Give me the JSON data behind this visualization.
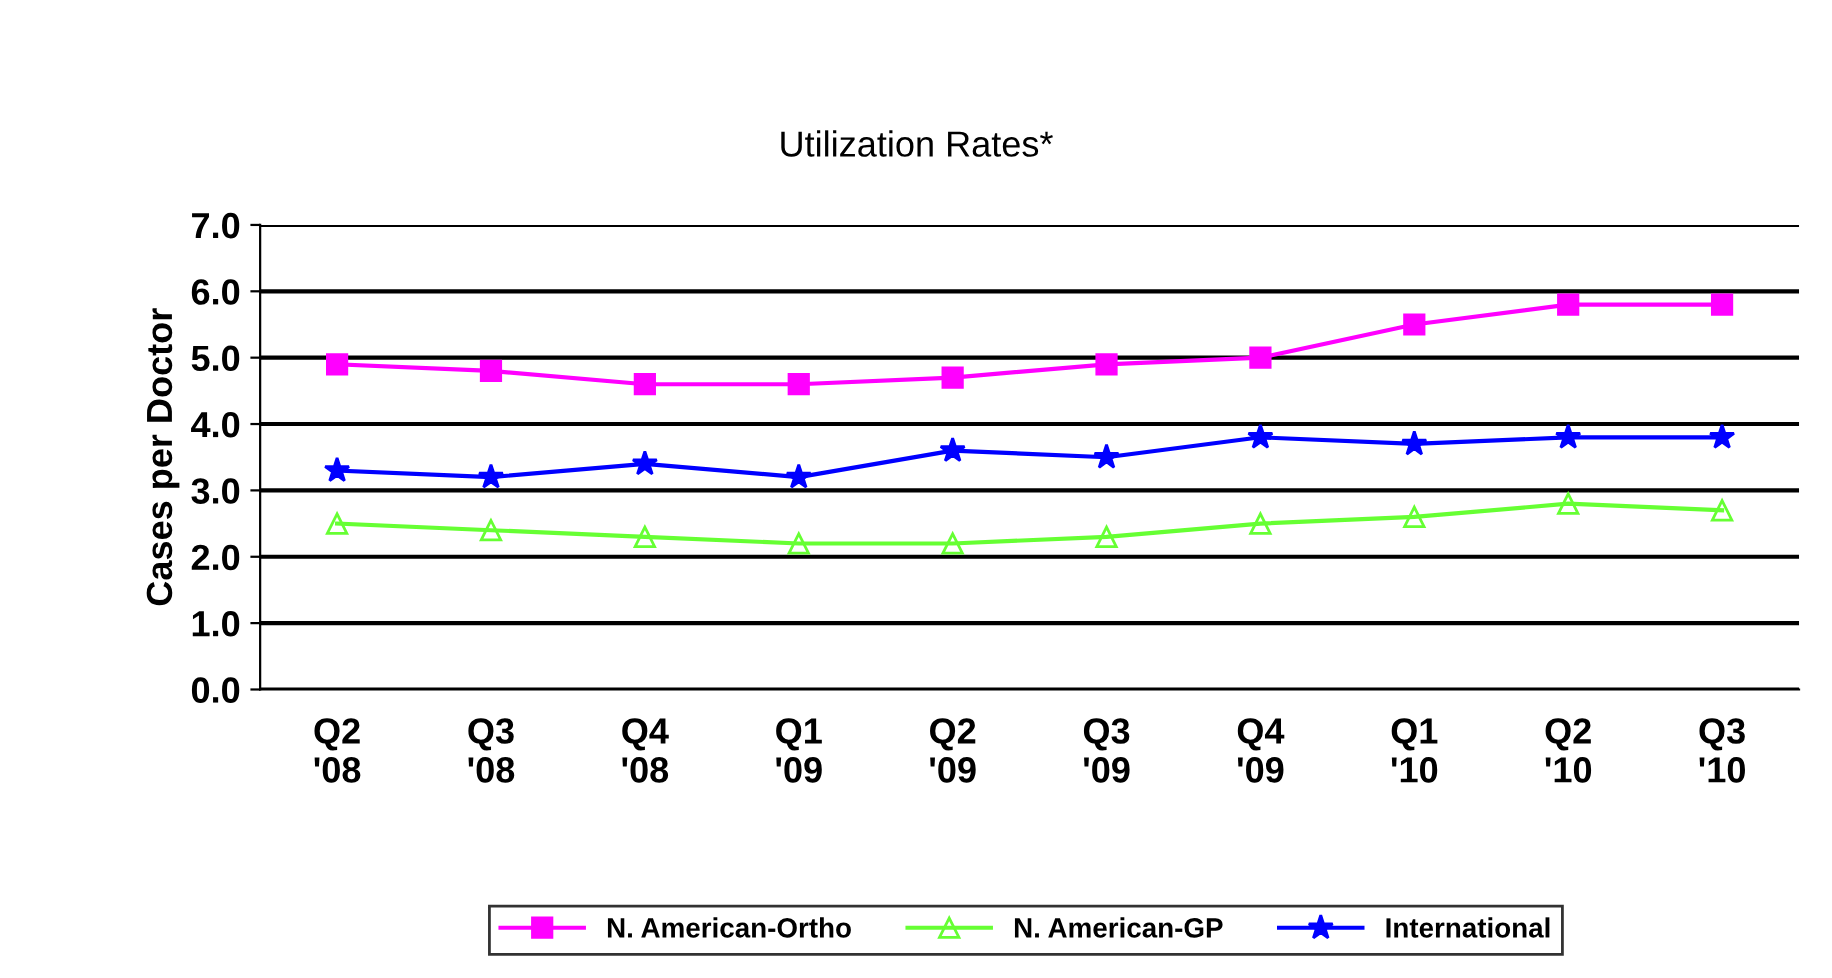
{
  "chart_data": {
    "type": "line",
    "title": "Utilization Rates*",
    "ylabel": "Cases per Doctor",
    "categories": [
      "Q2\n'08",
      "Q3\n'08",
      "Q4\n'08",
      "Q1\n'09",
      "Q2\n'09",
      "Q3\n'09",
      "Q4\n'09",
      "Q1\n'10",
      "Q2\n'10",
      "Q3\n'10"
    ],
    "series": [
      {
        "name": "N. American-Ortho",
        "color": "#ff00ff",
        "marker": "square",
        "values": [
          4.9,
          4.8,
          4.6,
          4.6,
          4.7,
          4.9,
          5.0,
          5.5,
          5.8,
          5.8
        ]
      },
      {
        "name": "N. American-GP",
        "color": "#66ff33",
        "marker": "triangle",
        "values": [
          2.5,
          2.4,
          2.3,
          2.2,
          2.2,
          2.3,
          2.5,
          2.6,
          2.8,
          2.7
        ]
      },
      {
        "name": "International",
        "color": "#0000ff",
        "marker": "star",
        "values": [
          3.3,
          3.2,
          3.4,
          3.2,
          3.6,
          3.5,
          3.8,
          3.7,
          3.8,
          3.8
        ]
      }
    ],
    "ylim": [
      0,
      7
    ],
    "yticks": [
      {
        "value": 0,
        "label": "0.0"
      },
      {
        "value": 1,
        "label": "1.0"
      },
      {
        "value": 2,
        "label": "2.0"
      },
      {
        "value": 3,
        "label": "3.0"
      },
      {
        "value": 4,
        "label": "4.0"
      },
      {
        "value": 5,
        "label": "5.0"
      },
      {
        "value": 6,
        "label": "6.0"
      },
      {
        "value": 7,
        "label": "7.0"
      }
    ],
    "grid": "y",
    "legend": "bottom",
    "line_style": "solid"
  }
}
